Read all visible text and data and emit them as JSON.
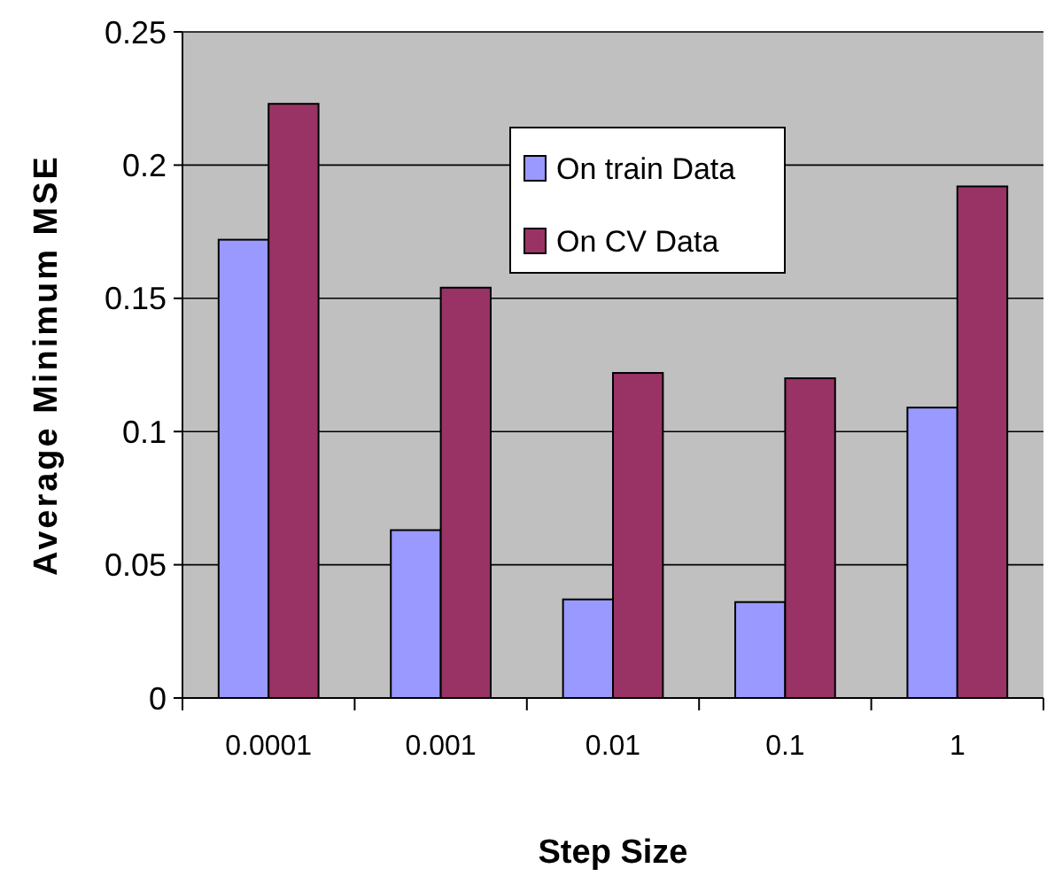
{
  "chart_data": {
    "type": "bar",
    "xlabel": "Step Size",
    "ylabel": "Average Minimum MSE",
    "categories": [
      "0.0001",
      "0.001",
      "0.01",
      "0.1",
      "1"
    ],
    "series": [
      {
        "name": "On train Data",
        "color": "#9999ff",
        "values": [
          0.172,
          0.063,
          0.037,
          0.036,
          0.109
        ]
      },
      {
        "name": "On CV Data",
        "color": "#993366",
        "values": [
          0.223,
          0.154,
          0.122,
          0.12,
          0.192
        ]
      }
    ],
    "ylim": [
      0,
      0.25
    ],
    "yticks": [
      0,
      0.05,
      {
        "value": 0.1,
        "label": "0.1"
      },
      0.15,
      {
        "value": 0.2,
        "label": "0.2"
      },
      0.25
    ],
    "grid": "y",
    "legend": "top"
  }
}
